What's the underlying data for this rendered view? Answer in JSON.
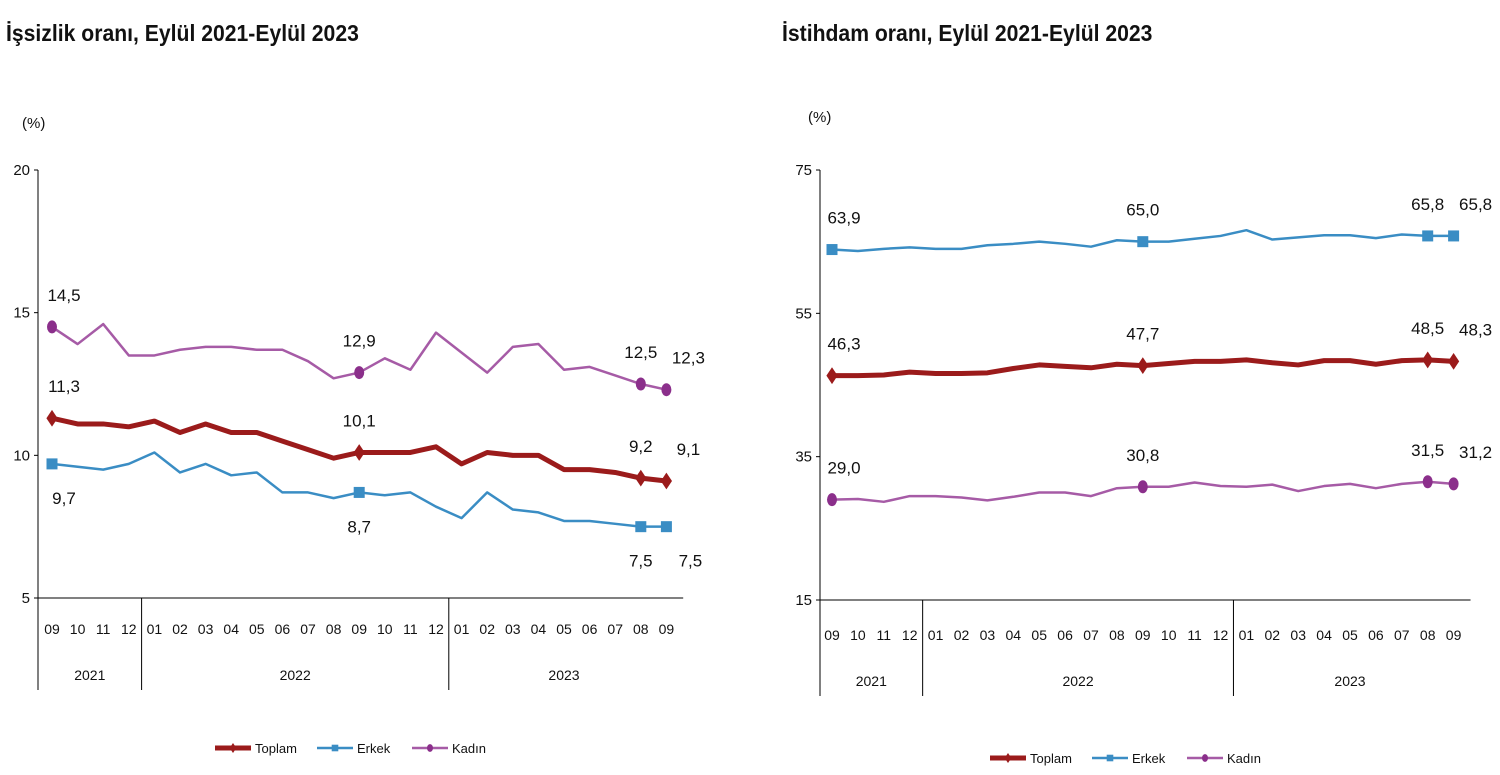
{
  "chart_data": [
    {
      "type": "line",
      "title": "İşsizlik oranı, Eylül 2021-Eylül 2023",
      "ylabel": "(%)",
      "ylim": [
        5,
        20
      ],
      "yticks": [
        "5",
        "10",
        "15",
        "20"
      ],
      "categories": [
        "09",
        "10",
        "11",
        "12",
        "01",
        "02",
        "03",
        "04",
        "05",
        "06",
        "07",
        "08",
        "09",
        "10",
        "11",
        "12",
        "01",
        "02",
        "03",
        "04",
        "05",
        "06",
        "07",
        "08",
        "09"
      ],
      "years": [
        {
          "label": "2021",
          "span": 4
        },
        {
          "label": "2022",
          "span": 12
        },
        {
          "label": "2023",
          "span": 9
        }
      ],
      "grid": false,
      "legend_position": "bottom",
      "series": [
        {
          "name": "Toplam",
          "color": "#9B1B1B",
          "marker": "diamond",
          "label_position": "above",
          "values": [
            11.3,
            11.1,
            11.1,
            11.0,
            11.2,
            10.8,
            11.1,
            10.8,
            10.8,
            10.5,
            10.2,
            9.9,
            10.1,
            10.1,
            10.1,
            10.3,
            9.7,
            10.1,
            10.0,
            10.0,
            9.5,
            9.5,
            9.4,
            9.2,
            9.1
          ],
          "labels": [
            {
              "index": 0,
              "text": "11,3"
            },
            {
              "index": 12,
              "text": "10,1"
            },
            {
              "index": 23,
              "text": "9,2"
            },
            {
              "index": 24,
              "text": "9,1"
            }
          ]
        },
        {
          "name": "Erkek",
          "color": "#3A8DC4",
          "marker": "square",
          "label_position": "below",
          "values": [
            9.7,
            9.6,
            9.5,
            9.7,
            10.1,
            9.4,
            9.7,
            9.3,
            9.4,
            8.7,
            8.7,
            8.5,
            8.7,
            8.6,
            8.7,
            8.2,
            7.8,
            8.7,
            8.1,
            8.0,
            7.7,
            7.7,
            7.6,
            7.5,
            7.5
          ],
          "labels": [
            {
              "index": 0,
              "text": "9,7"
            },
            {
              "index": 12,
              "text": "8,7"
            },
            {
              "index": 23,
              "text": "7,5"
            },
            {
              "index": 24,
              "text": "7,5"
            }
          ]
        },
        {
          "name": "Kadın",
          "color": "#A65BA6",
          "marker": "circle",
          "label_position": "above",
          "values": [
            14.5,
            13.9,
            14.6,
            13.5,
            13.5,
            13.7,
            13.8,
            13.8,
            13.7,
            13.7,
            13.3,
            12.7,
            12.9,
            13.4,
            13.0,
            14.3,
            13.6,
            12.9,
            13.8,
            13.9,
            13.0,
            13.1,
            12.8,
            12.5,
            12.3
          ],
          "labels": [
            {
              "index": 0,
              "text": "14,5"
            },
            {
              "index": 12,
              "text": "12,9"
            },
            {
              "index": 23,
              "text": "12,5"
            },
            {
              "index": 24,
              "text": "12,3"
            }
          ]
        }
      ]
    },
    {
      "type": "line",
      "title": "İstihdam oranı, Eylül 2021-Eylül 2023",
      "ylabel": "(%)",
      "ylim": [
        15,
        75
      ],
      "yticks": [
        "15",
        "35",
        "55",
        "75"
      ],
      "categories": [
        "09",
        "10",
        "11",
        "12",
        "01",
        "02",
        "03",
        "04",
        "05",
        "06",
        "07",
        "08",
        "09",
        "10",
        "11",
        "12",
        "01",
        "02",
        "03",
        "04",
        "05",
        "06",
        "07",
        "08",
        "09"
      ],
      "years": [
        {
          "label": "2021",
          "span": 4
        },
        {
          "label": "2022",
          "span": 12
        },
        {
          "label": "2023",
          "span": 9
        }
      ],
      "grid": false,
      "legend_position": "bottom",
      "series": [
        {
          "name": "Toplam",
          "color": "#9B1B1B",
          "marker": "diamond",
          "label_position": "above",
          "values": [
            46.3,
            46.3,
            46.4,
            46.8,
            46.6,
            46.6,
            46.7,
            47.3,
            47.8,
            47.6,
            47.4,
            47.9,
            47.7,
            48.0,
            48.3,
            48.3,
            48.5,
            48.1,
            47.8,
            48.4,
            48.4,
            47.9,
            48.4,
            48.5,
            48.3
          ],
          "labels": [
            {
              "index": 0,
              "text": "46,3"
            },
            {
              "index": 12,
              "text": "47,7"
            },
            {
              "index": 23,
              "text": "48,5"
            },
            {
              "index": 24,
              "text": "48,3"
            }
          ]
        },
        {
          "name": "Erkek",
          "color": "#3A8DC4",
          "marker": "square",
          "label_position": "above",
          "values": [
            63.9,
            63.7,
            64.0,
            64.2,
            64.0,
            64.0,
            64.5,
            64.7,
            65.0,
            64.7,
            64.3,
            65.2,
            65.0,
            65.0,
            65.4,
            65.8,
            66.6,
            65.3,
            65.6,
            65.9,
            65.9,
            65.5,
            66.0,
            65.8,
            65.8
          ],
          "labels": [
            {
              "index": 0,
              "text": "63,9"
            },
            {
              "index": 12,
              "text": "65,0"
            },
            {
              "index": 23,
              "text": "65,8"
            },
            {
              "index": 24,
              "text": "65,8"
            }
          ]
        },
        {
          "name": "Kadın",
          "color": "#A65BA6",
          "marker": "circle",
          "label_position": "above",
          "values": [
            29.0,
            29.1,
            28.7,
            29.5,
            29.5,
            29.3,
            28.9,
            29.4,
            30.0,
            30.0,
            29.5,
            30.6,
            30.8,
            30.8,
            31.4,
            30.9,
            30.8,
            31.1,
            30.2,
            30.9,
            31.2,
            30.6,
            31.2,
            31.5,
            31.2
          ],
          "labels": [
            {
              "index": 0,
              "text": "29,0"
            },
            {
              "index": 12,
              "text": "30,8"
            },
            {
              "index": 23,
              "text": "31,5"
            },
            {
              "index": 24,
              "text": "31,2"
            }
          ]
        }
      ]
    }
  ]
}
